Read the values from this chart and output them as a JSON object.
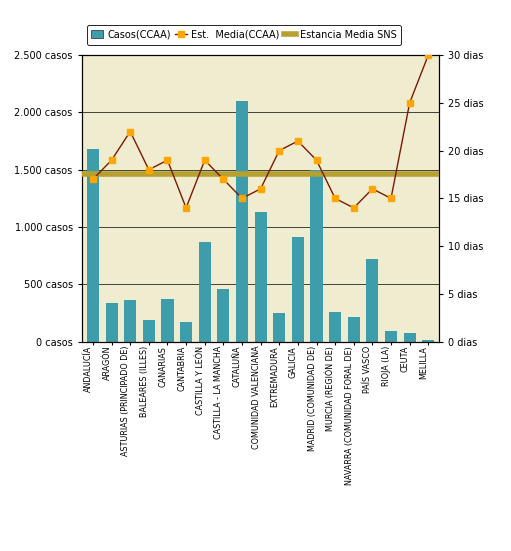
{
  "categories": [
    "ANDALUCÍA",
    "ARAGÓN",
    "ASTURIAS (PRINCIPADO DE)",
    "BALEARES (ILLES)",
    "CANARIAS",
    "CANTABRIA",
    "CASTILLA Y LEÓN",
    "CASTILLA - LA MANCHA",
    "CATALUÑA",
    "COMUNIDAD VALENCIANA",
    "EXTREMADURA",
    "GALICIA",
    "MADRID (COMUNIDAD DE)",
    "MURCIA (REGIÓN DE)",
    "NAVARRA (COMUNIDAD FORAL DE)",
    "PAÍS VASCO",
    "RIOJA (LA)",
    "CEUTA",
    "MELILLA"
  ],
  "casos": [
    1680,
    340,
    360,
    190,
    370,
    175,
    870,
    460,
    2100,
    1130,
    250,
    910,
    1500,
    260,
    215,
    720,
    95,
    75,
    15
  ],
  "est_media_ccaa": [
    17,
    19,
    22,
    18,
    19,
    14,
    19,
    17,
    15,
    16,
    20,
    21,
    19,
    15,
    14,
    16,
    15,
    25,
    30
  ],
  "estancia_media_sns": 17.5,
  "bar_color": "#3d9daa",
  "line_color": "#7b1a00",
  "marker_color": "#ffa500",
  "sns_line_color": "#b5a030",
  "background_color": "#f0ecd0",
  "ylim_left": [
    0,
    2500
  ],
  "ylim_right": [
    0,
    30
  ],
  "yticks_left": [
    0,
    500,
    1000,
    1500,
    2000,
    2500
  ],
  "yticks_right": [
    0,
    5,
    10,
    15,
    20,
    25,
    30
  ],
  "ytick_labels_left": [
    "0 casos",
    "500 casos",
    "1.000 casos",
    "1.500 casos",
    "2.000 casos",
    "2.500 casos"
  ],
  "ytick_labels_right": [
    "0 dias",
    "5 dias",
    "10 dias",
    "15 dias",
    "20 dias",
    "25 dias",
    "30 dias"
  ],
  "legend_casos": "Casos(CCAA)",
  "legend_est_media": "Est.  Media(CCAA)",
  "legend_sns": "Estancia Media SNS",
  "figsize": [
    5.11,
    5.51
  ],
  "dpi": 100
}
